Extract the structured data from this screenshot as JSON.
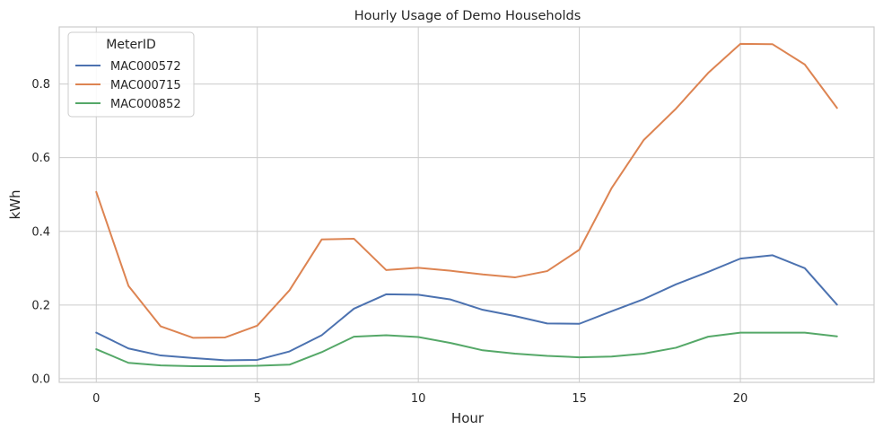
{
  "chart_data": {
    "type": "line",
    "title": "Hourly Usage of Demo Households",
    "xlabel": "Hour",
    "ylabel": "kWh",
    "xlim": [
      -1.15,
      24.15
    ],
    "ylim": [
      -0.01,
      0.955
    ],
    "xticks": [
      0,
      5,
      10,
      15,
      20
    ],
    "xtick_labels": [
      "0",
      "5",
      "10",
      "15",
      "20"
    ],
    "yticks": [
      0.0,
      0.2,
      0.4,
      0.6,
      0.8
    ],
    "ytick_labels": [
      "0.0",
      "0.2",
      "0.4",
      "0.6",
      "0.8"
    ],
    "grid": true,
    "legend": {
      "title": "MeterID",
      "placement": "top-left"
    },
    "x": [
      0,
      1,
      2,
      3,
      4,
      5,
      6,
      7,
      8,
      9,
      10,
      11,
      12,
      13,
      14,
      15,
      16,
      17,
      18,
      19,
      20,
      21,
      22,
      23
    ],
    "series": [
      {
        "name": "MAC000572",
        "color": "#4c72b0",
        "values": [
          0.125,
          0.082,
          0.063,
          0.056,
          0.05,
          0.051,
          0.074,
          0.118,
          0.19,
          0.229,
          0.228,
          0.215,
          0.187,
          0.17,
          0.15,
          0.149,
          0.183,
          0.216,
          0.256,
          0.29,
          0.326,
          0.335,
          0.3,
          0.201
        ]
      },
      {
        "name": "MAC000715",
        "color": "#dd8452",
        "values": [
          0.507,
          0.252,
          0.142,
          0.111,
          0.112,
          0.144,
          0.24,
          0.378,
          0.38,
          0.295,
          0.301,
          0.293,
          0.283,
          0.275,
          0.292,
          0.35,
          0.517,
          0.648,
          0.733,
          0.83,
          0.909,
          0.908,
          0.853,
          0.735
        ]
      },
      {
        "name": "MAC000852",
        "color": "#55a868",
        "values": [
          0.08,
          0.043,
          0.036,
          0.034,
          0.034,
          0.035,
          0.038,
          0.072,
          0.114,
          0.118,
          0.113,
          0.097,
          0.077,
          0.068,
          0.062,
          0.058,
          0.06,
          0.068,
          0.084,
          0.114,
          0.125,
          0.125,
          0.125,
          0.115
        ]
      }
    ]
  }
}
